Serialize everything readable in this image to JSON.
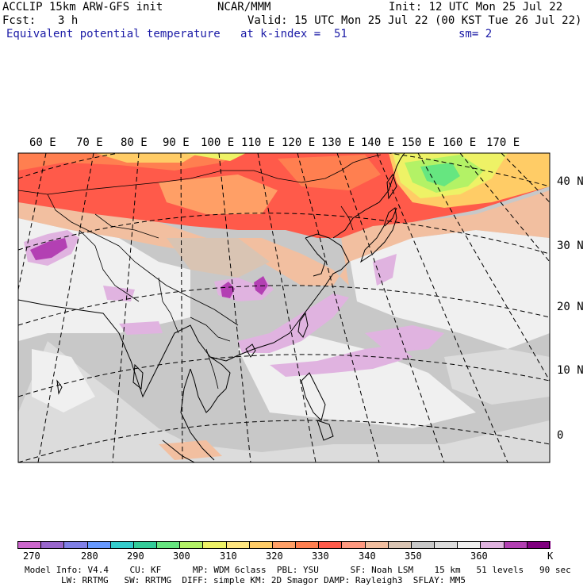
{
  "header": {
    "model": "ACCLIP 15km ARW-GFS init",
    "org": "NCAR/MMM",
    "init": "Init: 12 UTC Mon 25 Jul 22",
    "fcst_label": "Fcst:",
    "fcst_value": "3 h",
    "valid": "Valid: 15 UTC Mon 25 Jul 22 (00 KST Tue 26 Jul 22)",
    "field": "Equivalent potential temperature",
    "level": "at k-index =  51",
    "smoothing": "sm= 2"
  },
  "map": {
    "projection": "Lambert conformal",
    "lon_labels": [
      "60 E",
      "70 E",
      "80 E",
      "90 E",
      "100 E",
      "110 E",
      "120 E",
      "130 E",
      "140 E",
      "150 E",
      "160 E",
      "170 E"
    ],
    "lat_labels": [
      "40 N",
      "30 N",
      "20 N",
      "10 N",
      "0"
    ]
  },
  "colorbar": {
    "colors": [
      "#cc66cc",
      "#9966cc",
      "#8080e6",
      "#6699ff",
      "#33cccc",
      "#33cc99",
      "#66e680",
      "#b3f266",
      "#eef266",
      "#ffe680",
      "#ffcc66",
      "#ff9f66",
      "#ff7f50",
      "#ff5a4a",
      "#ff9980",
      "#f2bfa0",
      "#d9c4b3",
      "#c8c8c8",
      "#dcdcdc",
      "#f0f0f0",
      "#e0b3e0",
      "#b340b3",
      "#80007f"
    ],
    "labels": [
      "270",
      "280",
      "290",
      "300",
      "310",
      "320",
      "330",
      "340",
      "350",
      "360"
    ],
    "unit": "K"
  },
  "footer": {
    "line1": "Model Info: V4.4    CU: KF      MP: WDM 6class  PBL: YSU      SF: Noah LSM    15 km   51 levels   90 sec",
    "line2": "LW: RRTMG   SW: RRTMG  DIFF: simple KM: 2D Smagor DAMP: Rayleigh3  SFLAY: MM5"
  }
}
